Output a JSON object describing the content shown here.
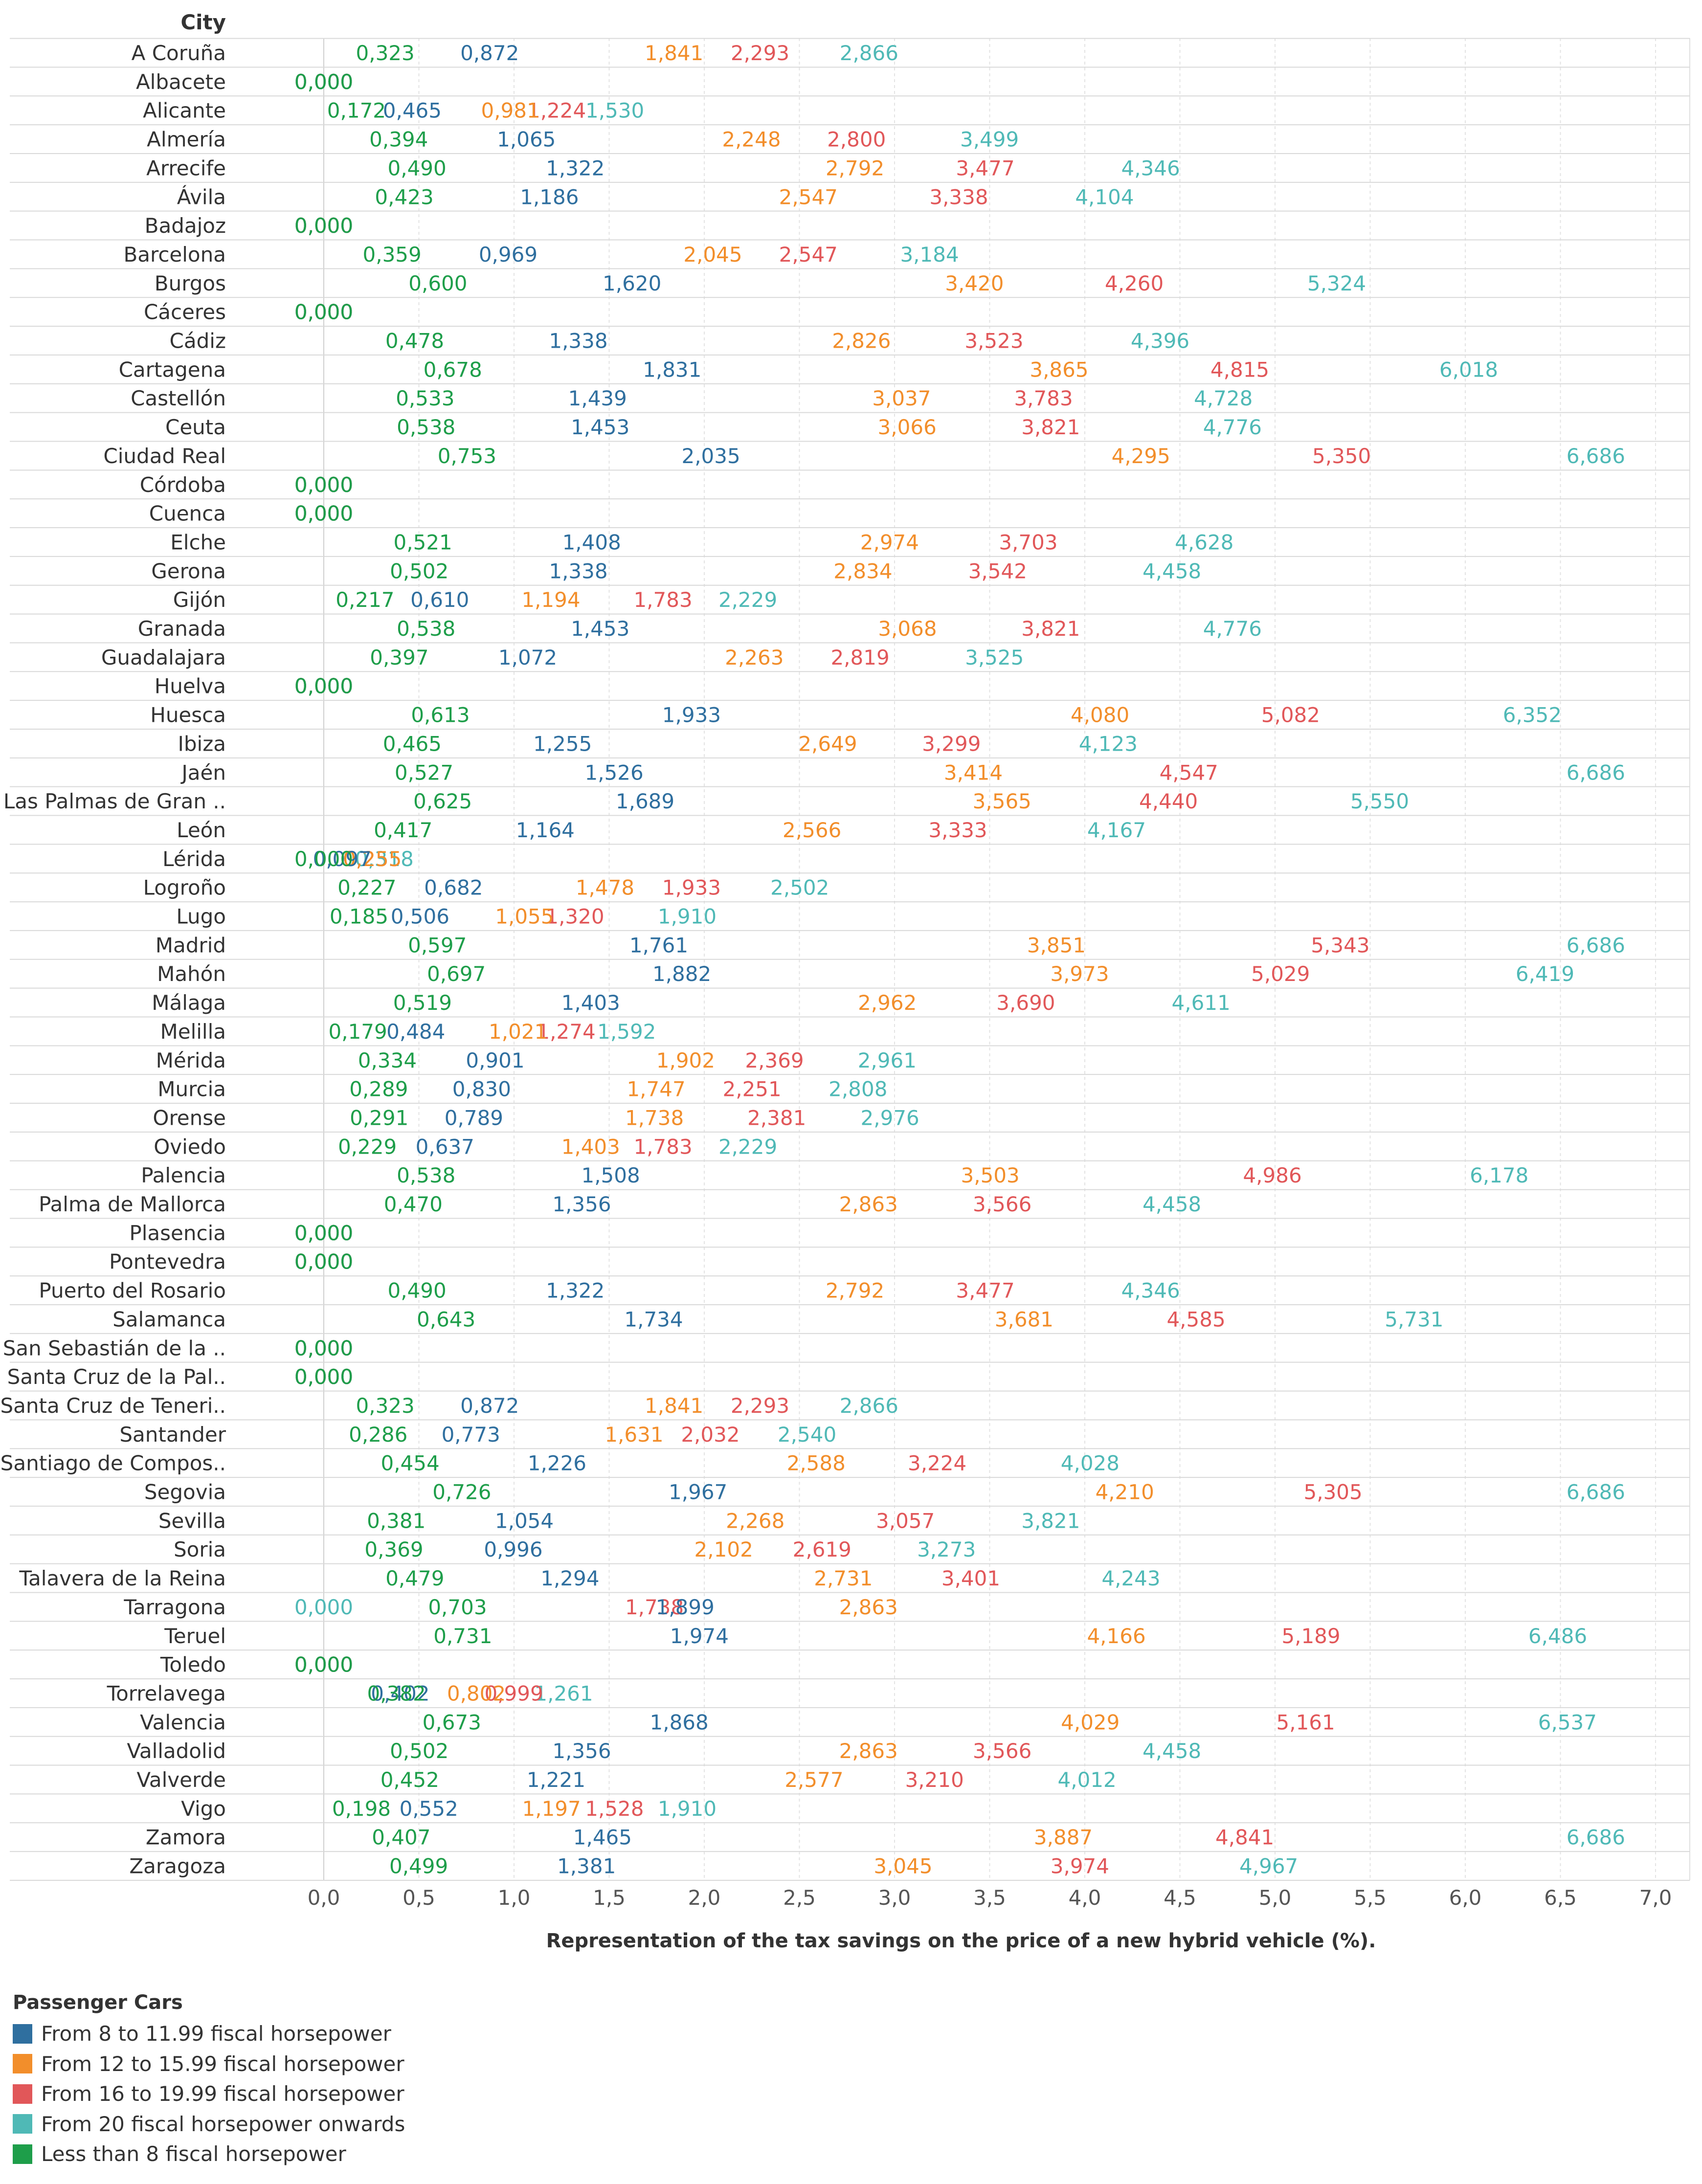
{
  "chart_data": {
    "type": "scatter",
    "row_header": "City",
    "xlabel": "Representation of the tax savings on the price of a new hybrid vehicle (%).",
    "xlim": [
      0,
      7
    ],
    "xticks": [
      "0,0",
      "0,5",
      "1,0",
      "1,5",
      "2,0",
      "2,5",
      "3,0",
      "3,5",
      "4,0",
      "4,5",
      "5,0",
      "5,5",
      "6,0",
      "6,5",
      "7,0"
    ],
    "legend_title": "Passenger Cars",
    "legend": [
      {
        "key": "hp8_12",
        "label": "From 8 to 11.99 fiscal horsepower",
        "color": "#2f6f9f"
      },
      {
        "key": "hp12_16",
        "label": "From 12 to 15.99 fiscal horsepower",
        "color": "#f28e2b"
      },
      {
        "key": "hp16_20",
        "label": "From 16 to 19.99 fiscal horsepower",
        "color": "#e15759"
      },
      {
        "key": "hp20",
        "label": "From 20 fiscal horsepower onwards",
        "color": "#4fb9b6"
      },
      {
        "key": "lt8",
        "label": "Less than 8 fiscal horsepower",
        "color": "#1e9e4a"
      }
    ],
    "series_order": [
      "lt8",
      "hp8_12",
      "hp12_16",
      "hp16_20",
      "hp20"
    ],
    "rows": [
      {
        "city": "A Coruña",
        "v": [
          "0,323",
          "0,872",
          "1,841",
          "2,293",
          "2,866"
        ]
      },
      {
        "city": "Albacete",
        "v": [
          "0,000",
          "0,000",
          "0,000",
          "0,000",
          "0,000"
        ]
      },
      {
        "city": "Alicante",
        "v": [
          "0,172",
          "0,465",
          "0,981",
          "1,224",
          "1,530"
        ]
      },
      {
        "city": "Almería",
        "v": [
          "0,394",
          "1,065",
          "2,248",
          "2,800",
          "3,499"
        ]
      },
      {
        "city": "Arrecife",
        "v": [
          "0,490",
          "1,322",
          "2,792",
          "3,477",
          "4,346"
        ]
      },
      {
        "city": "Ávila",
        "v": [
          "0,423",
          "1,186",
          "2,547",
          "3,338",
          "4,104"
        ]
      },
      {
        "city": "Badajoz",
        "v": [
          "0,000",
          "0,000",
          "0,000",
          "0,000",
          "0,000"
        ]
      },
      {
        "city": "Barcelona",
        "v": [
          "0,359",
          "0,969",
          "2,045",
          "2,547",
          "3,184"
        ]
      },
      {
        "city": "Burgos",
        "v": [
          "0,600",
          "1,620",
          "3,420",
          "4,260",
          "5,324"
        ]
      },
      {
        "city": "Cáceres",
        "v": [
          "0,000",
          "0,000",
          "0,000",
          "0,000",
          "0,000"
        ]
      },
      {
        "city": "Cádiz",
        "v": [
          "0,478",
          "1,338",
          "2,826",
          "3,523",
          "4,396"
        ]
      },
      {
        "city": "Cartagena",
        "v": [
          "0,678",
          "1,831",
          "3,865",
          "4,815",
          "6,018"
        ]
      },
      {
        "city": "Castellón",
        "v": [
          "0,533",
          "1,439",
          "3,037",
          "3,783",
          "4,728"
        ]
      },
      {
        "city": "Ceuta",
        "v": [
          "0,538",
          "1,453",
          "3,066",
          "3,821",
          "4,776"
        ]
      },
      {
        "city": "Ciudad Real",
        "v": [
          "0,753",
          "2,035",
          "4,295",
          "5,350",
          "6,686"
        ]
      },
      {
        "city": "Córdoba",
        "v": [
          "0,000",
          "0,000",
          "0,000",
          "0,000",
          "0,000"
        ]
      },
      {
        "city": "Cuenca",
        "v": [
          "0,000",
          "0,000",
          "0,000",
          "0,000",
          "0,000"
        ]
      },
      {
        "city": "Elche",
        "v": [
          "0,521",
          "1,408",
          "2,974",
          "3,703",
          "4,628"
        ]
      },
      {
        "city": "Gerona",
        "v": [
          "0,502",
          "1,338",
          "2,834",
          "3,542",
          "4,458"
        ]
      },
      {
        "city": "Gijón",
        "v": [
          "0,217",
          "0,610",
          "1,194",
          "1,783",
          "2,229"
        ]
      },
      {
        "city": "Granada",
        "v": [
          "0,538",
          "1,453",
          "3,068",
          "3,821",
          "4,776"
        ]
      },
      {
        "city": "Guadalajara",
        "v": [
          "0,397",
          "1,072",
          "2,263",
          "2,819",
          "3,525"
        ]
      },
      {
        "city": "Huelva",
        "v": [
          "0,000",
          "0,000",
          "0,000",
          "0,000",
          "0,000"
        ]
      },
      {
        "city": "Huesca",
        "v": [
          "0,613",
          "1,933",
          "4,080",
          "5,082",
          "6,352"
        ]
      },
      {
        "city": "Ibiza",
        "v": [
          "0,465",
          "1,255",
          "2,649",
          "3,299",
          "4,123"
        ]
      },
      {
        "city": "Jaén",
        "v": [
          "0,527",
          "1,526",
          "3,414",
          "4,547",
          "6,686"
        ]
      },
      {
        "city": "Las Palmas de Gran ..",
        "v": [
          "0,625",
          "1,689",
          "3,565",
          "4,440",
          "5,550"
        ]
      },
      {
        "city": "León",
        "v": [
          "0,417",
          "1,164",
          "2,566",
          "3,333",
          "4,167"
        ]
      },
      {
        "city": "Lérida",
        "v": [
          "0,000",
          "0,097",
          "0,255",
          "0,255",
          "0,318"
        ]
      },
      {
        "city": "Logroño",
        "v": [
          "0,227",
          "0,682",
          "1,478",
          "1,933",
          "2,502"
        ]
      },
      {
        "city": "Lugo",
        "v": [
          "0,185",
          "0,506",
          "1,055",
          "1,320",
          "1,910"
        ]
      },
      {
        "city": "Madrid",
        "v": [
          "0,597",
          "1,761",
          "3,851",
          "5,343",
          "6,686"
        ]
      },
      {
        "city": "Mahón",
        "v": [
          "0,697",
          "1,882",
          "3,973",
          "5,029",
          "6,419"
        ]
      },
      {
        "city": "Málaga",
        "v": [
          "0,519",
          "1,403",
          "2,962",
          "3,690",
          "4,611"
        ]
      },
      {
        "city": "Melilla",
        "v": [
          "0,179",
          "0,484",
          "1,021",
          "1,274",
          "1,592"
        ]
      },
      {
        "city": "Mérida",
        "v": [
          "0,334",
          "0,901",
          "1,902",
          "2,369",
          "2,961"
        ]
      },
      {
        "city": "Murcia",
        "v": [
          "0,289",
          "0,830",
          "1,747",
          "2,251",
          "2,808"
        ]
      },
      {
        "city": "Orense",
        "v": [
          "0,291",
          "0,789",
          "1,738",
          "2,381",
          "2,976"
        ]
      },
      {
        "city": "Oviedo",
        "v": [
          "0,229",
          "0,637",
          "1,403",
          "1,783",
          "2,229"
        ]
      },
      {
        "city": "Palencia",
        "v": [
          "0,538",
          "1,508",
          "3,503",
          "4,986",
          "6,178"
        ]
      },
      {
        "city": "Palma de Mallorca",
        "v": [
          "0,470",
          "1,356",
          "2,863",
          "3,566",
          "4,458"
        ]
      },
      {
        "city": "Plasencia",
        "v": [
          "0,000",
          "0,000",
          "0,000",
          "0,000",
          "0,000"
        ]
      },
      {
        "city": "Pontevedra",
        "v": [
          "0,000",
          "0,000",
          "0,000",
          "0,000",
          "0,000"
        ]
      },
      {
        "city": "Puerto del Rosario",
        "v": [
          "0,490",
          "1,322",
          "2,792",
          "3,477",
          "4,346"
        ]
      },
      {
        "city": "Salamanca",
        "v": [
          "0,643",
          "1,734",
          "3,681",
          "4,585",
          "5,731"
        ]
      },
      {
        "city": "San Sebastián de la ..",
        "v": [
          "0,000",
          "0,000",
          "0,000",
          "0,000",
          "0,000"
        ]
      },
      {
        "city": "Santa Cruz de la Pal..",
        "v": [
          "0,000",
          "0,000",
          "0,000",
          "0,000",
          "0,000"
        ]
      },
      {
        "city": "Santa Cruz de Teneri..",
        "v": [
          "0,323",
          "0,872",
          "1,841",
          "2,293",
          "2,866"
        ]
      },
      {
        "city": "Santander",
        "v": [
          "0,286",
          "0,773",
          "1,631",
          "2,032",
          "2,540"
        ]
      },
      {
        "city": "Santiago de Compos..",
        "v": [
          "0,454",
          "1,226",
          "2,588",
          "3,224",
          "4,028"
        ]
      },
      {
        "city": "Segovia",
        "v": [
          "0,726",
          "1,967",
          "4,210",
          "5,305",
          "6,686"
        ]
      },
      {
        "city": "Sevilla",
        "v": [
          "0,381",
          "1,054",
          "2,268",
          "3,057",
          "3,821"
        ]
      },
      {
        "city": "Soria",
        "v": [
          "0,369",
          "0,996",
          "2,102",
          "2,619",
          "3,273"
        ]
      },
      {
        "city": "Talavera de la Reina",
        "v": [
          "0,479",
          "1,294",
          "2,731",
          "3,401",
          "4,243"
        ]
      },
      {
        "city": "Tarragona",
        "v": [
          "0,703",
          "1,899",
          "2,863",
          "1,738",
          "0,000"
        ]
      },
      {
        "city": "Teruel",
        "v": [
          "0,731",
          "1,974",
          "4,166",
          "5,189",
          "6,486"
        ]
      },
      {
        "city": "Toledo",
        "v": [
          "0,000",
          "0,000",
          "0,000",
          "0,000",
          "0,000"
        ]
      },
      {
        "city": "Torrelavega",
        "v": [
          "0,382",
          "0,402",
          "0,802",
          "0,999",
          "1,261"
        ]
      },
      {
        "city": "Valencia",
        "v": [
          "0,673",
          "1,868",
          "4,029",
          "5,161",
          "6,537"
        ]
      },
      {
        "city": "Valladolid",
        "v": [
          "0,502",
          "1,356",
          "2,863",
          "3,566",
          "4,458"
        ]
      },
      {
        "city": "Valverde",
        "v": [
          "0,452",
          "1,221",
          "2,577",
          "3,210",
          "4,012"
        ]
      },
      {
        "city": "Vigo",
        "v": [
          "0,198",
          "0,552",
          "1,197",
          "1,528",
          "1,910"
        ]
      },
      {
        "city": "Zamora",
        "v": [
          "0,407",
          "1,465",
          "3,887",
          "4,841",
          "6,686"
        ]
      },
      {
        "city": "Zaragoza",
        "v": [
          "0,499",
          "1,381",
          "3,045",
          "3,974",
          "4,967"
        ]
      }
    ]
  }
}
